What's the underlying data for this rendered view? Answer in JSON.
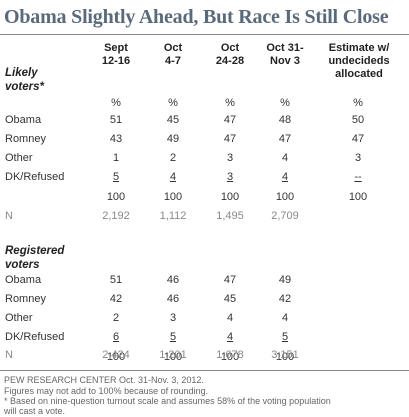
{
  "title": "Obama Slightly Ahead, But Race Is Still Close",
  "columns": [
    {
      "line1": "Sept",
      "line2": "12-16",
      "line3": ""
    },
    {
      "line1": "Oct",
      "line2": "4-7",
      "line3": ""
    },
    {
      "line1": "Oct",
      "line2": "24-28",
      "line3": ""
    },
    {
      "line1": "Oct 31-",
      "line2": "Nov 3",
      "line3": ""
    },
    {
      "line1": "Estimate w/",
      "line2": "undecideds",
      "line3": "allocated"
    }
  ],
  "chart_data": {
    "type": "table",
    "title": "Obama Slightly Ahead, But Race Is Still Close",
    "sections": [
      {
        "label_line1": "Likely",
        "label_line2": "voters*",
        "rows": [
          {
            "label": "",
            "values": [
              "%",
              "%",
              "%",
              "%",
              "%"
            ]
          },
          {
            "label": "Obama",
            "values": [
              "51",
              "45",
              "47",
              "48",
              "50"
            ]
          },
          {
            "label": "Romney",
            "values": [
              "43",
              "49",
              "47",
              "47",
              "47"
            ]
          },
          {
            "label": "Other",
            "values": [
              "1",
              "2",
              "3",
              "4",
              "3"
            ]
          },
          {
            "label": "DK/Refused",
            "values": [
              "5",
              "4",
              "3",
              "4",
              "--"
            ]
          },
          {
            "label": "",
            "values": [
              "100",
              "100",
              "100",
              "100",
              "100"
            ]
          },
          {
            "label": "N",
            "values": [
              "2,192",
              "1,112",
              "1,495",
              "2,709",
              ""
            ]
          }
        ]
      },
      {
        "label_line1": "Registered",
        "label_line2": "voters",
        "rows": [
          {
            "label": "Obama",
            "values": [
              "51",
              "46",
              "47",
              "49",
              ""
            ]
          },
          {
            "label": "Romney",
            "values": [
              "42",
              "46",
              "45",
              "42",
              ""
            ]
          },
          {
            "label": "Other",
            "values": [
              "2",
              "3",
              "4",
              "4",
              ""
            ]
          },
          {
            "label": "DK/Refused",
            "values": [
              "6",
              "5",
              "4",
              "5",
              ""
            ]
          },
          {
            "label": "",
            "values": [
              "100",
              "100",
              "100",
              "100",
              ""
            ]
          },
          {
            "label": "N",
            "values": [
              "2,424",
              "1,201",
              "1,678",
              "3,151",
              ""
            ]
          }
        ]
      }
    ]
  },
  "footer": {
    "line1": "PEW RESEARCH CENTER Oct. 31-Nov. 3, 2012.",
    "line2": "Figures may not add to 100% because of rounding.",
    "line3": "* Based on nine-question turnout scale and assumes 58% of the voting population",
    "line4": "will cast a vote."
  }
}
